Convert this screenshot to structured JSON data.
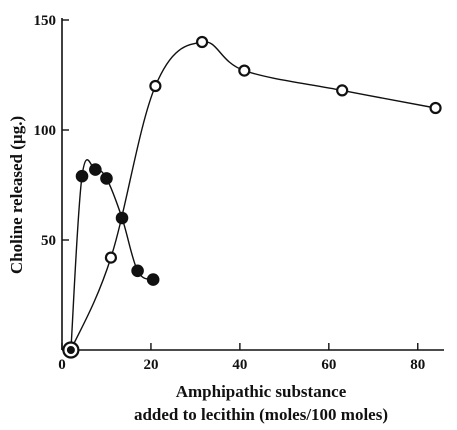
{
  "chart_data": {
    "type": "scatter",
    "xlabel_line1": "Amphipathic substance",
    "xlabel_line2": "added to lecithin (moles/100 moles)",
    "ylabel": "Choline released (µg.)",
    "xlim": [
      0,
      85
    ],
    "ylim": [
      0,
      150
    ],
    "xticks": [
      0,
      20,
      40,
      60,
      80
    ],
    "yticks": [
      50,
      100,
      150
    ],
    "series": [
      {
        "marker": "open",
        "x": [
          2,
          11,
          21,
          31.5,
          41,
          63,
          84
        ],
        "y": [
          0,
          42,
          120,
          140,
          127,
          118,
          110
        ]
      },
      {
        "marker": "filled",
        "x": [
          2,
          4.5,
          7.5,
          10,
          13.5,
          17,
          20.5
        ],
        "y": [
          0,
          79,
          82,
          78,
          60,
          36,
          32
        ]
      }
    ]
  }
}
